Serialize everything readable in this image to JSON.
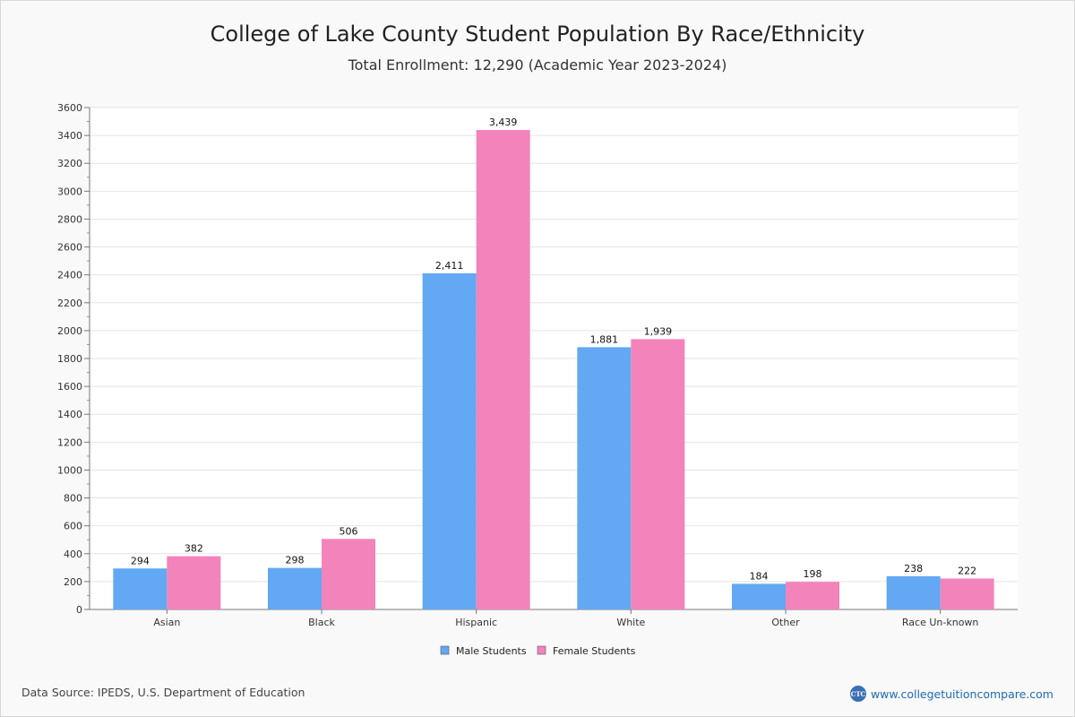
{
  "header": {
    "title": "College of Lake County Student Population By Race/Ethnicity",
    "subtitle": "Total Enrollment: 12,290 (Academic Year 2023-2024)"
  },
  "footer": {
    "source": "Data Source: IPEDS, U.S. Department of Education",
    "site": "www.collegetuitioncompare.com",
    "logo_text": "CTC"
  },
  "colors": {
    "male": "#62a8f2",
    "female": "#f383bb"
  },
  "chart_data": {
    "type": "bar",
    "title": "College of Lake County Student Population By Race/Ethnicity",
    "subtitle": "Total Enrollment: 12,290 (Academic Year 2023-2024)",
    "xlabel": "",
    "ylabel": "",
    "categories": [
      "Asian",
      "Black",
      "Hispanic",
      "White",
      "Other",
      "Race Un-known"
    ],
    "series": [
      {
        "name": "Male Students",
        "values": [
          294,
          298,
          2411,
          1881,
          184,
          238
        ],
        "labels": [
          "294",
          "298",
          "2,411",
          "1,881",
          "184",
          "238"
        ]
      },
      {
        "name": "Female Students",
        "values": [
          382,
          506,
          3439,
          1939,
          198,
          222
        ],
        "labels": [
          "382",
          "506",
          "3,439",
          "1,939",
          "198",
          "222"
        ]
      }
    ],
    "ylim": [
      0,
      3600
    ],
    "yticks": [
      0,
      200,
      400,
      600,
      800,
      1000,
      1200,
      1400,
      1600,
      1800,
      2000,
      2200,
      2400,
      2600,
      2800,
      3000,
      3200,
      3400,
      3600
    ],
    "grid": true,
    "legend": "bottom-center"
  }
}
